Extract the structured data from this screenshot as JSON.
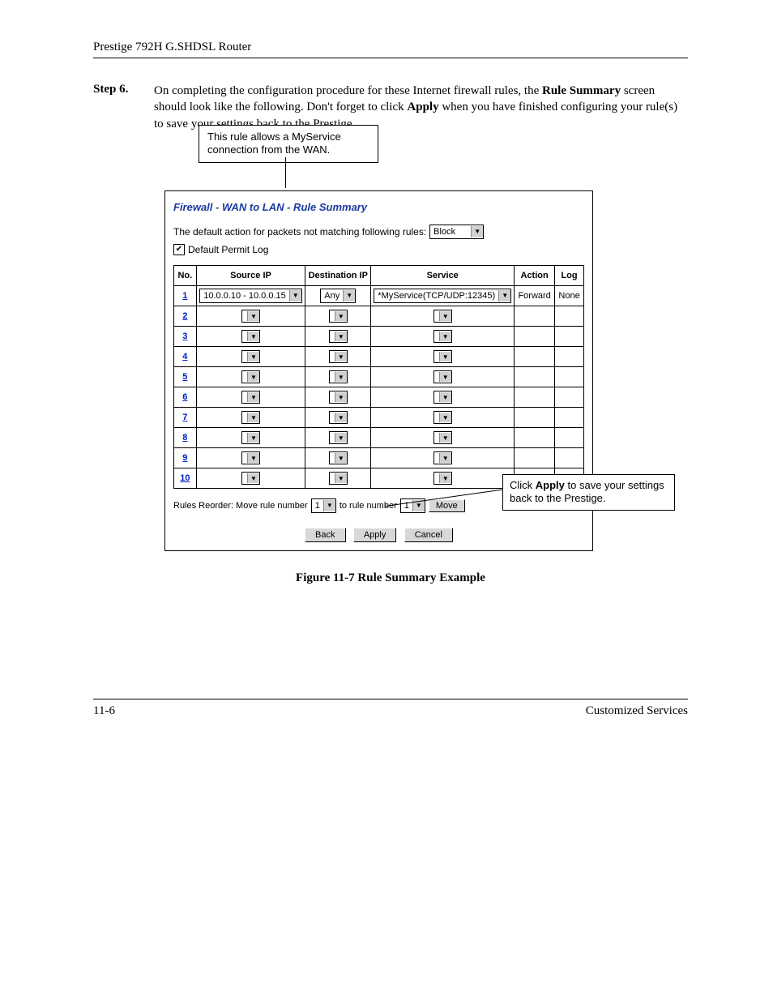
{
  "header": {
    "title": "Prestige 792H G.SHDSL Router"
  },
  "step": {
    "label": "Step 6.",
    "text_before_bold1": "On completing the configuration procedure for these Internet firewall rules, the ",
    "bold1": "Rule Summary",
    "text_mid": " screen should look like the following. Don't forget to click ",
    "bold2": "Apply",
    "text_after": " when you have finished configuring your rule(s) to save your settings back to the Prestige."
  },
  "callout_top": "This rule allows a MyService connection from the WAN.",
  "callout_right_before": "Click ",
  "callout_right_bold": "Apply",
  "callout_right_after": " to save your settings back to the Prestige.",
  "screenshot": {
    "breadcrumb": "Firewall - WAN to LAN - Rule Summary",
    "default_label": "The default action for packets not matching following rules:",
    "default_value": "Block",
    "permit_label": "Default Permit Log",
    "permit_checked": true,
    "headers": {
      "no": "No.",
      "src": "Source IP",
      "dst": "Destination IP",
      "svc": "Service",
      "act": "Action",
      "log": "Log"
    },
    "row1": {
      "no": "1",
      "src": "10.0.0.10 - 10.0.0.15",
      "dst": "Any",
      "svc": "*MyService(TCP/UDP:12345)",
      "act": "Forward",
      "log": "None"
    },
    "empty_rows": [
      "2",
      "3",
      "4",
      "5",
      "6",
      "7",
      "8",
      "9",
      "10"
    ],
    "reorder": {
      "text1": "Rules Reorder: Move rule number",
      "val1": "1",
      "text2": "to rule number",
      "val2": "1",
      "move": "Move"
    },
    "buttons": {
      "back": "Back",
      "apply": "Apply",
      "cancel": "Cancel"
    }
  },
  "figure_caption": "Figure 11-7 Rule Summary Example",
  "footer": {
    "left": "11-6",
    "right": "Customized Services"
  }
}
